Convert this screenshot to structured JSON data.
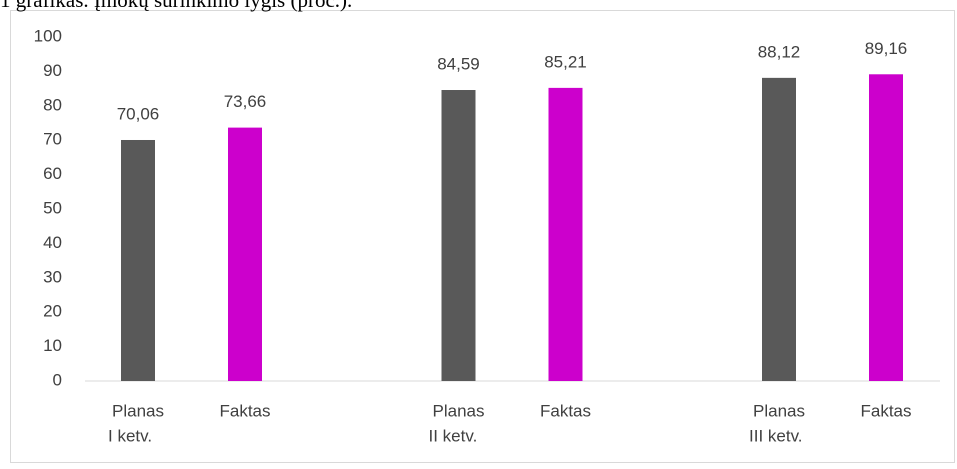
{
  "chart_data": {
    "type": "bar",
    "title": "1 grafikas. Įmokų surinkimo lygis (proc.).",
    "categories": [
      "I ketv.",
      "II ketv.",
      "III ketv."
    ],
    "series": [
      {
        "name": "Planas",
        "color": "#595959",
        "values": [
          70.06,
          84.59,
          88.12
        ],
        "value_labels": [
          "70,06",
          "84,59",
          "88,12"
        ]
      },
      {
        "name": "Faktas",
        "color": "#cc00cc",
        "values": [
          73.66,
          85.21,
          89.16
        ],
        "value_labels": [
          "73,66",
          "85,21",
          "89,16"
        ]
      }
    ],
    "ylim": [
      0,
      100
    ],
    "yticks": [
      0,
      10,
      20,
      30,
      40,
      50,
      60,
      70,
      80,
      90,
      100
    ],
    "grid": false
  }
}
